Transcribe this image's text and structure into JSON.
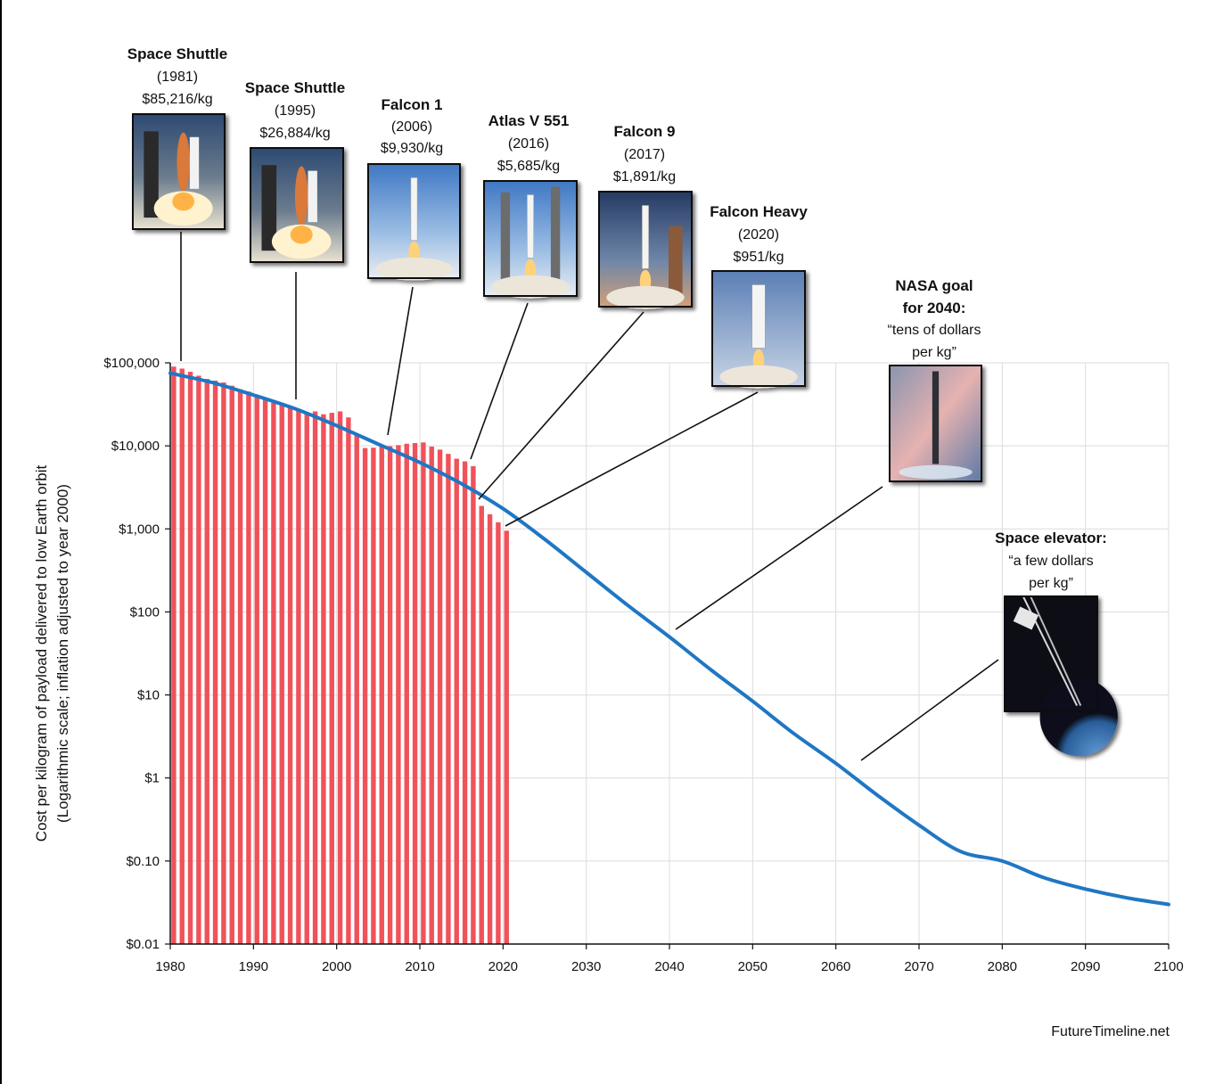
{
  "chart_data": {
    "type": "bar",
    "credit": "FutureTimeline.net",
    "ylabel_line1": "Cost per kilogram of payload delivered to low Earth orbit",
    "ylabel_line2": "(Logarithmic scale; inflation adjusted to year 2000)",
    "xlim": [
      1980,
      2100
    ],
    "ylim": [
      0.01,
      100000
    ],
    "y_scale": "log",
    "grid": true,
    "x_ticks": [
      1980,
      1990,
      2000,
      2010,
      2020,
      2030,
      2040,
      2050,
      2060,
      2070,
      2080,
      2090,
      2100
    ],
    "y_ticks": [
      {
        "value": 100000,
        "label": "$100,000"
      },
      {
        "value": 10000,
        "label": "$10,000"
      },
      {
        "value": 1000,
        "label": "$1,000"
      },
      {
        "value": 100,
        "label": "$100"
      },
      {
        "value": 10,
        "label": "$10"
      },
      {
        "value": 1,
        "label": "$1"
      },
      {
        "value": 0.1,
        "label": "$0.10"
      },
      {
        "value": 0.01,
        "label": "$0.01"
      }
    ],
    "bar_color": "#f0525a",
    "line_color": "#1f77c4",
    "bars": {
      "x": [
        1980,
        1981,
        1982,
        1983,
        1984,
        1985,
        1986,
        1987,
        1988,
        1989,
        1990,
        1991,
        1992,
        1993,
        1994,
        1995,
        1996,
        1997,
        1998,
        1999,
        2000,
        2001,
        2002,
        2003,
        2004,
        2005,
        2006,
        2007,
        2008,
        2009,
        2010,
        2011,
        2012,
        2013,
        2014,
        2015,
        2016,
        2017,
        2018,
        2019,
        2020
      ],
      "values": [
        90000,
        85216,
        78000,
        70000,
        64000,
        61000,
        58000,
        53000,
        48000,
        45000,
        40000,
        37000,
        33000,
        31000,
        29000,
        26884,
        25000,
        26000,
        24000,
        25000,
        26000,
        22000,
        13500,
        9400,
        9500,
        9800,
        9930,
        10200,
        10600,
        10800,
        11000,
        9800,
        9000,
        8000,
        7000,
        6500,
        5685,
        1891,
        1500,
        1200,
        951
      ]
    },
    "trend_line": {
      "name": "",
      "x": [
        1980,
        1985,
        1990,
        1995,
        2000,
        2005,
        2010,
        2015,
        2020,
        2025,
        2030,
        2035,
        2040,
        2045,
        2050,
        2055,
        2060,
        2065,
        2070,
        2075,
        2080,
        2085,
        2090,
        2095,
        2100
      ],
      "values": [
        75000,
        58000,
        41000,
        28000,
        17500,
        10500,
        6300,
        3500,
        1750,
        750,
        300,
        120,
        50,
        20,
        8.4,
        3.4,
        1.5,
        0.62,
        0.27,
        0.13,
        0.1,
        0.063,
        0.046,
        0.036,
        0.03
      ]
    },
    "annotations": [
      {
        "id": "space-shuttle-1981",
        "title": "Space Shuttle",
        "line1": "(1981)",
        "line2": "$85,216/kg",
        "x": 1981,
        "y": 85216,
        "image": "shuttle-launch"
      },
      {
        "id": "space-shuttle-1995",
        "title": "Space Shuttle",
        "line1": "(1995)",
        "line2": "$26,884/kg",
        "x": 1995,
        "y": 26884,
        "image": "shuttle-launch"
      },
      {
        "id": "falcon-1",
        "title": "Falcon 1",
        "line1": "(2006)",
        "line2": "$9,930/kg",
        "x": 2006,
        "y": 9930,
        "image": "small-rocket"
      },
      {
        "id": "atlas-v-551",
        "title": "Atlas V 551",
        "line1": "(2016)",
        "line2": "$5,685/kg",
        "x": 2016,
        "y": 5685,
        "image": "tower-rocket"
      },
      {
        "id": "falcon-9",
        "title": "Falcon 9",
        "line1": "(2017)",
        "line2": "$1,891/kg",
        "x": 2017,
        "y": 1891,
        "image": "falcon9-rocket"
      },
      {
        "id": "falcon-heavy",
        "title": "Falcon Heavy",
        "line1": "(2020)",
        "line2": "$951/kg",
        "x": 2020,
        "y": 951,
        "image": "heavy-rocket"
      },
      {
        "id": "nasa-goal",
        "title": "NASA goal",
        "title2": "for 2040:",
        "line1": "“tens of dollars",
        "line2": "per kg”",
        "x": 2040,
        "y": 50,
        "image": "future-rocket"
      },
      {
        "id": "space-elevator",
        "title": "Space elevator:",
        "line1": "“a few dollars",
        "line2": "per kg”",
        "x": 2063,
        "y": 1.1,
        "image": "space-elevator"
      }
    ]
  }
}
